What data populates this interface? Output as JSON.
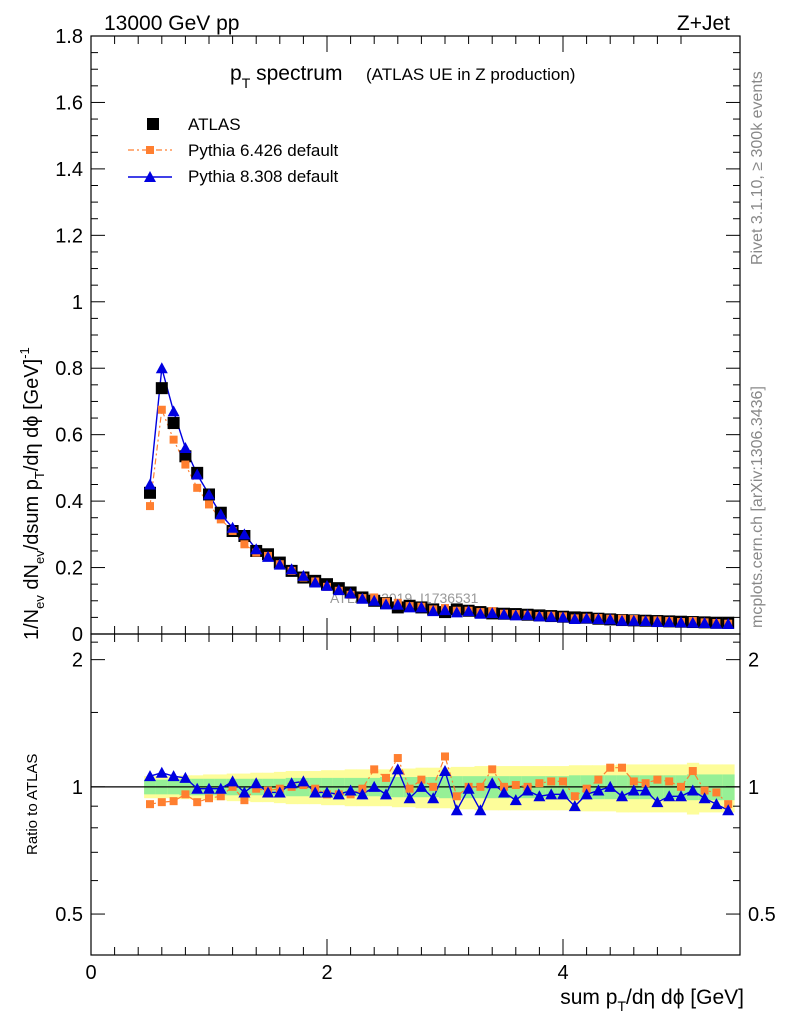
{
  "header": {
    "energy": "13000 GeV pp",
    "process": "Z+Jet"
  },
  "side_labels": {
    "rivet": "Rivet 3.1.10, ≥ 300k events",
    "mcplots": "mcplots.cern.ch [arXiv:1306.3436]"
  },
  "watermark": "ATLAS_2019_I1736531",
  "chart_data": [
    {
      "type": "line",
      "title_main": "p",
      "title_sub": "T",
      "title_word": " spectrum",
      "title_paren": "(ATLAS UE in Z production)",
      "xlabel": "sum p_T/dη dϕ [GeV]",
      "ylabel": "1/N_ev dN_ev/dsum p_T/dη dϕ [GeV]^-1",
      "xlim": [
        0,
        5.5
      ],
      "ylim": [
        0,
        1.8
      ],
      "yticks": [
        "0",
        "0.2",
        "0.4",
        "0.6",
        "0.8",
        "1",
        "1.2",
        "1.4",
        "1.6",
        "1.8"
      ],
      "x": [
        0.5,
        0.6,
        0.7,
        0.8,
        0.9,
        1.0,
        1.1,
        1.2,
        1.3,
        1.4,
        1.5,
        1.6,
        1.7,
        1.8,
        1.9,
        2.0,
        2.1,
        2.2,
        2.3,
        2.4,
        2.5,
        2.6,
        2.7,
        2.8,
        2.9,
        3.0,
        3.1,
        3.2,
        3.3,
        3.4,
        3.5,
        3.6,
        3.7,
        3.8,
        3.9,
        4.0,
        4.1,
        4.2,
        4.3,
        4.4,
        4.5,
        4.6,
        4.7,
        4.8,
        4.9,
        5.0,
        5.1,
        5.2,
        5.3,
        5.4
      ],
      "series": [
        {
          "name": "ATLAS",
          "color": "#000000",
          "marker": "square",
          "values": [
            0.425,
            0.74,
            0.635,
            0.535,
            0.485,
            0.42,
            0.365,
            0.31,
            0.295,
            0.25,
            0.24,
            0.215,
            0.19,
            0.17,
            0.16,
            0.15,
            0.138,
            0.125,
            0.11,
            0.1,
            0.093,
            0.08,
            0.085,
            0.08,
            0.074,
            0.066,
            0.074,
            0.07,
            0.066,
            0.062,
            0.061,
            0.06,
            0.058,
            0.056,
            0.054,
            0.052,
            0.05,
            0.049,
            0.046,
            0.044,
            0.042,
            0.041,
            0.04,
            0.039,
            0.038,
            0.037,
            0.036,
            0.035,
            0.034,
            0.034
          ]
        },
        {
          "name": "Pythia 6.426 default",
          "color": "#ff7f30",
          "marker": "square-small",
          "values": [
            0.385,
            0.675,
            0.585,
            0.51,
            0.44,
            0.39,
            0.345,
            0.31,
            0.27,
            0.245,
            0.235,
            0.21,
            0.19,
            0.17,
            0.158,
            0.142,
            0.13,
            0.118,
            0.108,
            0.11,
            0.097,
            0.094,
            0.084,
            0.082,
            0.074,
            0.078,
            0.07,
            0.07,
            0.066,
            0.069,
            0.061,
            0.06,
            0.058,
            0.054,
            0.055,
            0.053,
            0.047,
            0.049,
            0.048,
            0.046,
            0.046,
            0.045,
            0.041,
            0.041,
            0.039,
            0.036,
            0.039,
            0.035,
            0.033,
            0.031
          ]
        },
        {
          "name": "Pythia 8.308 default",
          "color": "#0000e0",
          "marker": "triangle",
          "values": [
            0.45,
            0.8,
            0.67,
            0.56,
            0.48,
            0.42,
            0.36,
            0.32,
            0.3,
            0.255,
            0.232,
            0.209,
            0.195,
            0.175,
            0.155,
            0.145,
            0.132,
            0.122,
            0.106,
            0.1,
            0.089,
            0.088,
            0.08,
            0.08,
            0.069,
            0.072,
            0.065,
            0.069,
            0.061,
            0.063,
            0.059,
            0.056,
            0.057,
            0.053,
            0.052,
            0.05,
            0.045,
            0.047,
            0.045,
            0.044,
            0.04,
            0.04,
            0.039,
            0.036,
            0.036,
            0.035,
            0.034,
            0.033,
            0.031,
            0.03
          ]
        }
      ],
      "legend_position": "top-left"
    },
    {
      "type": "line",
      "ylabel": "Ratio to ATLAS",
      "ylim": [
        0.4,
        2.3
      ],
      "yscale": "log",
      "ytick_labels": [
        "0.5",
        "1",
        "2"
      ],
      "ytick_values": [
        0.5,
        1,
        2
      ],
      "xticks": [
        "0",
        "2",
        "4"
      ],
      "xtick_values": [
        0,
        2,
        4
      ],
      "band_1sigma_halfwidth": [
        0.04,
        0.04,
        0.04,
        0.045,
        0.045,
        0.045,
        0.045,
        0.045,
        0.045,
        0.045,
        0.045,
        0.045,
        0.05,
        0.05,
        0.05,
        0.05,
        0.05,
        0.05,
        0.05,
        0.05,
        0.055,
        0.055,
        0.055,
        0.055,
        0.055,
        0.06,
        0.06,
        0.06,
        0.06,
        0.06,
        0.06,
        0.06,
        0.06,
        0.06,
        0.06,
        0.06,
        0.065,
        0.065,
        0.065,
        0.065,
        0.065,
        0.065,
        0.065,
        0.065,
        0.065,
        0.065,
        0.07,
        0.07,
        0.07,
        0.07
      ],
      "band_2sigma_halfwidth": [
        0.06,
        0.06,
        0.06,
        0.065,
        0.065,
        0.07,
        0.07,
        0.075,
        0.075,
        0.08,
        0.08,
        0.085,
        0.09,
        0.09,
        0.09,
        0.095,
        0.095,
        0.1,
        0.1,
        0.1,
        0.1,
        0.105,
        0.105,
        0.11,
        0.11,
        0.11,
        0.115,
        0.115,
        0.12,
        0.12,
        0.12,
        0.12,
        0.12,
        0.12,
        0.12,
        0.12,
        0.125,
        0.125,
        0.125,
        0.125,
        0.13,
        0.13,
        0.13,
        0.13,
        0.13,
        0.13,
        0.14,
        0.13,
        0.13,
        0.13
      ],
      "series": [
        {
          "name": "Pythia 6.426 default",
          "values": [
            0.91,
            0.92,
            0.925,
            0.96,
            0.92,
            0.94,
            0.95,
            1.0,
            0.93,
            0.99,
            0.98,
            0.99,
            1.0,
            1.01,
            0.99,
            0.96,
            0.96,
            0.96,
            0.99,
            1.1,
            1.05,
            1.17,
            0.99,
            1.04,
            1.0,
            1.18,
            0.95,
            1.0,
            1.0,
            1.1,
            1.0,
            1.01,
            1.0,
            1.02,
            1.03,
            1.03,
            0.95,
            0.99,
            1.04,
            1.11,
            1.11,
            1.03,
            1.02,
            1.04,
            1.03,
            1.0,
            1.09,
            0.98,
            0.97,
            0.91
          ]
        },
        {
          "name": "Pythia 8.308 default",
          "values": [
            1.06,
            1.08,
            1.06,
            1.05,
            0.99,
            0.99,
            0.99,
            1.03,
            0.97,
            1.02,
            0.97,
            0.97,
            1.02,
            1.03,
            0.97,
            0.97,
            0.96,
            0.98,
            0.96,
            1.0,
            0.96,
            1.1,
            0.94,
            1.0,
            0.94,
            1.09,
            0.88,
            0.99,
            0.88,
            1.02,
            0.97,
            0.93,
            0.98,
            0.95,
            0.96,
            0.96,
            0.9,
            0.96,
            0.98,
            1.0,
            0.95,
            0.98,
            0.98,
            0.92,
            0.95,
            0.95,
            0.98,
            0.94,
            0.91,
            0.88
          ]
        }
      ]
    }
  ]
}
